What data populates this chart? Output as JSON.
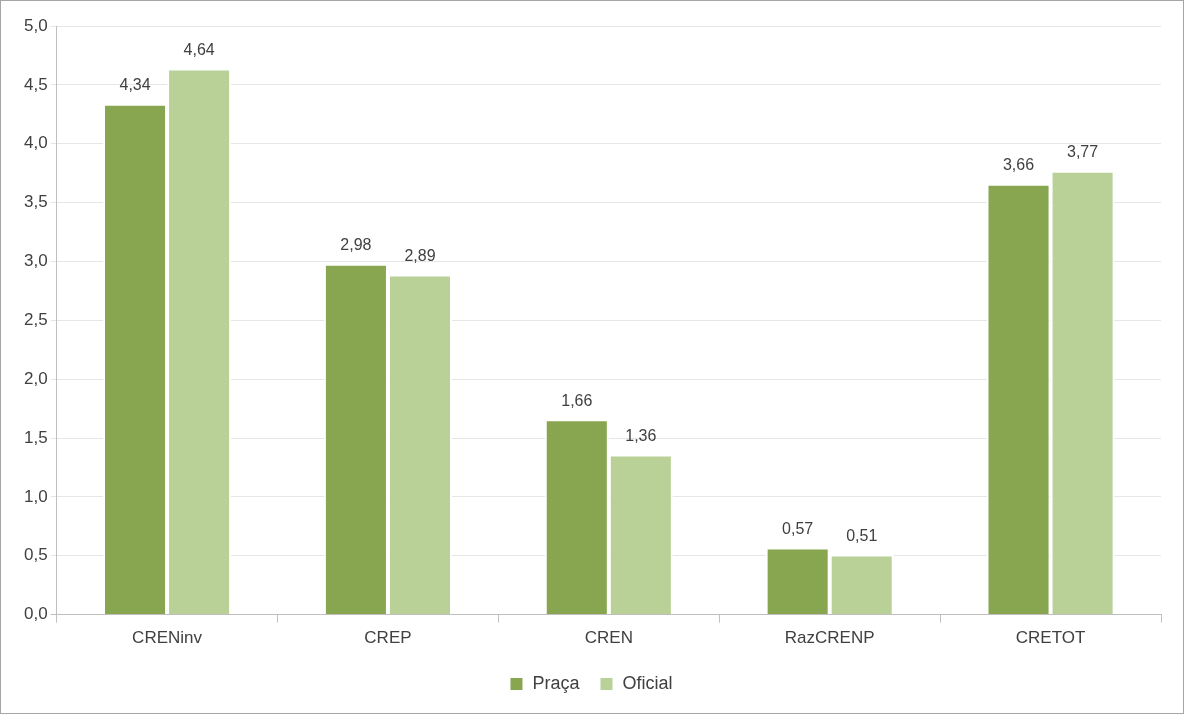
{
  "chart_data": {
    "type": "bar",
    "categories": [
      "CRENinv",
      "CREP",
      "CREN",
      "RazCRENP",
      "CRETOT"
    ],
    "series": [
      {
        "name": "Praça",
        "color": "#87a64f",
        "values": [
          4.34,
          2.98,
          1.66,
          0.57,
          3.66
        ],
        "value_labels": [
          "4,34",
          "2,98",
          "1,66",
          "0,57",
          "3,66"
        ]
      },
      {
        "name": "Oficial",
        "color": "#b9d197",
        "values": [
          4.64,
          2.89,
          1.36,
          0.51,
          3.77
        ],
        "value_labels": [
          "4,64",
          "2,89",
          "1,36",
          "0,51",
          "3,77"
        ]
      }
    ],
    "ylim": [
      0,
      5
    ],
    "yticks": [
      {
        "value": 0,
        "label": "0,0"
      },
      {
        "value": 0.5,
        "label": "0,5"
      },
      {
        "value": 1,
        "label": "1,0"
      },
      {
        "value": 1.5,
        "label": "1,5"
      },
      {
        "value": 2,
        "label": "2,0"
      },
      {
        "value": 2.5,
        "label": "2,5"
      },
      {
        "value": 3,
        "label": "3,0"
      },
      {
        "value": 3.5,
        "label": "3,5"
      },
      {
        "value": 4,
        "label": "4,0"
      },
      {
        "value": 4.5,
        "label": "4,5"
      },
      {
        "value": 5,
        "label": "5,0"
      }
    ],
    "grid": "y",
    "legend": "bottom"
  }
}
